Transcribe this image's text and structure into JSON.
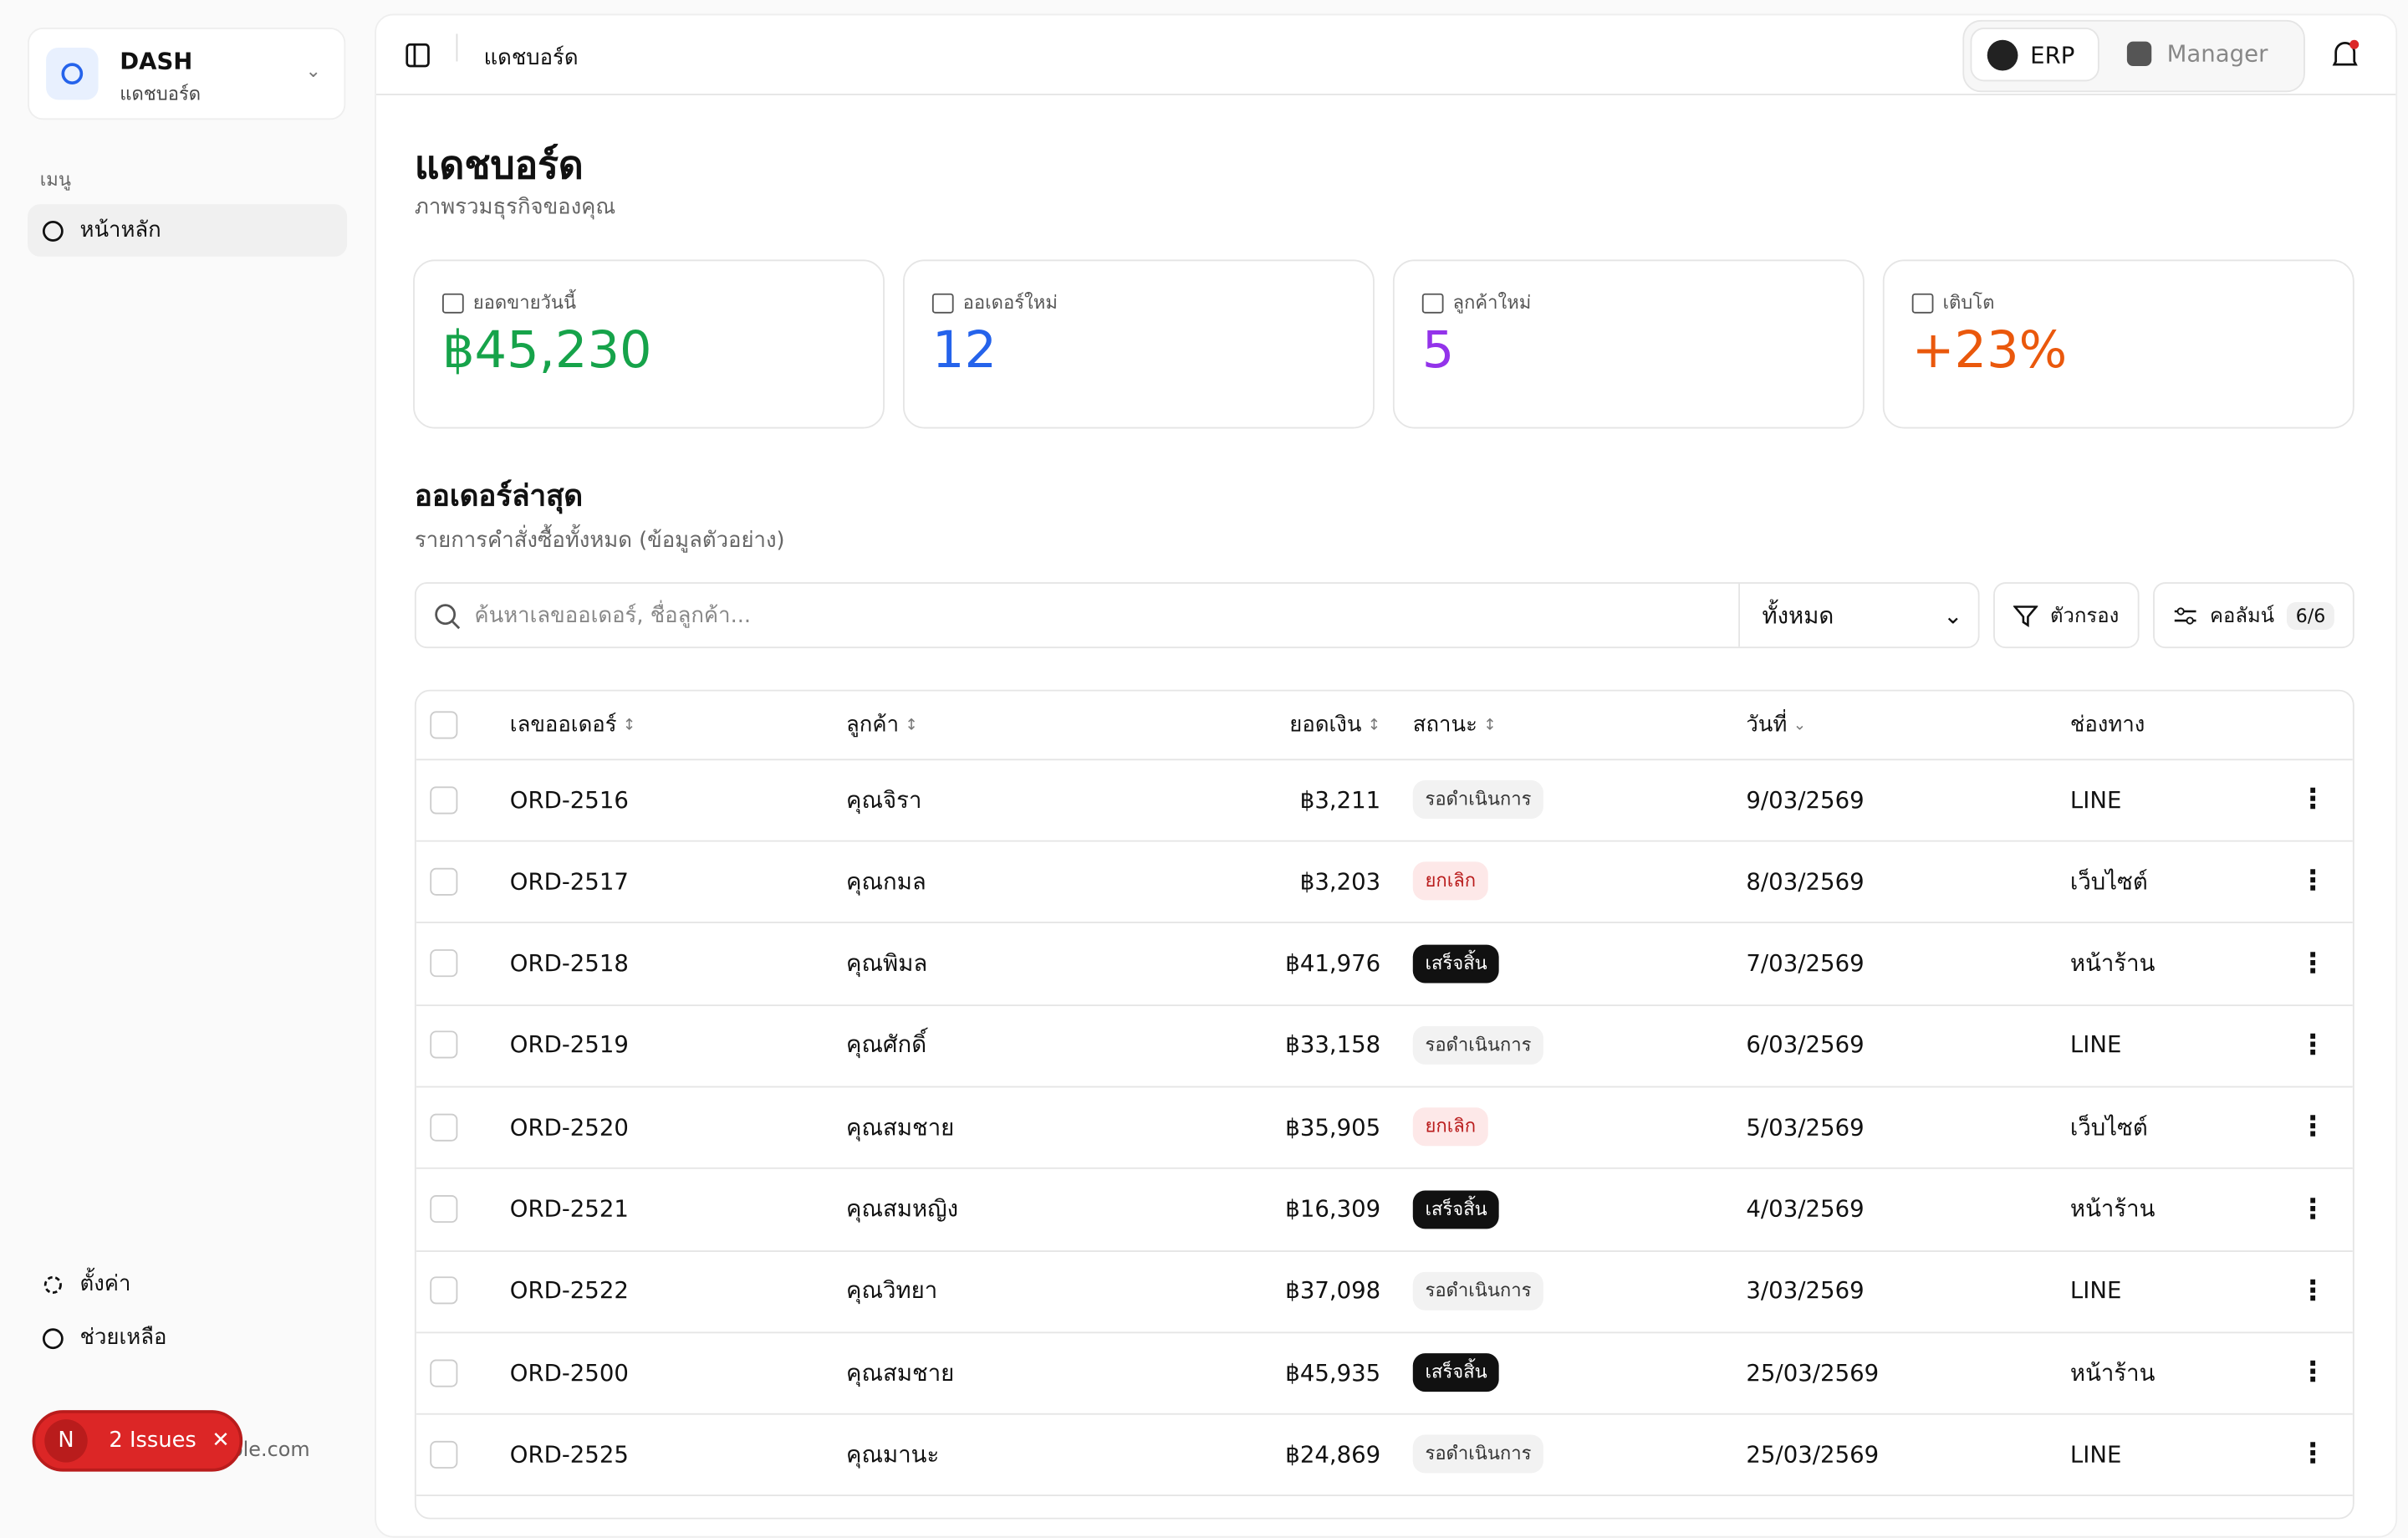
{
  "sidebar": {
    "brand": "DASH",
    "brand_sub": "แดชบอร์ด",
    "menu_label": "เมนู",
    "menu": [
      "หน้าหลัก"
    ],
    "footer": [
      "ตั้งค่า",
      "ช่วยเหลือ"
    ],
    "email": "ple.com"
  },
  "issues": {
    "icon": "N",
    "label": "2 Issues"
  },
  "header": {
    "breadcrumb": "แดชบอร์ด",
    "tabs": [
      "ERP",
      "Manager"
    ]
  },
  "page": {
    "title": "แดชบอร์ด",
    "subtitle": "ภาพรวมธุรกิจของคุณ"
  },
  "stats": [
    {
      "label": "ยอดขายวันนี้",
      "value": "฿45,230",
      "color": "#16a34a"
    },
    {
      "label": "ออเดอร์ใหม่",
      "value": "12",
      "color": "#2563eb"
    },
    {
      "label": "ลูกค้าใหม่",
      "value": "5",
      "color": "#9333ea"
    },
    {
      "label": "เติบโต",
      "value": "+23%",
      "color": "#ea580c"
    }
  ],
  "orders": {
    "title": "ออเดอร์ล่าสุด",
    "subtitle": "รายการคำสั่งซื้อทั้งหมด (ข้อมูลตัวอย่าง)",
    "search_placeholder": "ค้นหาเลขออเดอร์, ชื่อลูกค้า...",
    "filter_select": "ทั้งหมด",
    "filter_button": "ตัวกรอง",
    "columns_button": "คอลัมน์",
    "columns_count": "6/6",
    "headers": [
      "เลขออเดอร์",
      "ลูกค้า",
      "ยอดเงิน",
      "สถานะ",
      "วันที่",
      "ช่องทาง"
    ],
    "rows": [
      [
        "ORD-2516",
        "คุณจิรา",
        "฿3,211",
        "รอดำเนินการ",
        "9/03/2569",
        "LINE"
      ],
      [
        "ORD-2517",
        "คุณกมล",
        "฿3,203",
        "ยกเลิก",
        "8/03/2569",
        "เว็บไซต์"
      ],
      [
        "ORD-2518",
        "คุณพิมล",
        "฿41,976",
        "เสร็จสิ้น",
        "7/03/2569",
        "หน้าร้าน"
      ],
      [
        "ORD-2519",
        "คุณศักดิ์",
        "฿33,158",
        "รอดำเนินการ",
        "6/03/2569",
        "LINE"
      ],
      [
        "ORD-2520",
        "คุณสมชาย",
        "฿35,905",
        "ยกเลิก",
        "5/03/2569",
        "เว็บไซต์"
      ],
      [
        "ORD-2521",
        "คุณสมหญิง",
        "฿16,309",
        "เสร็จสิ้น",
        "4/03/2569",
        "หน้าร้าน"
      ],
      [
        "ORD-2522",
        "คุณวิทยา",
        "฿37,098",
        "รอดำเนินการ",
        "3/03/2569",
        "LINE"
      ],
      [
        "ORD-2500",
        "คุณสมชาย",
        "฿45,935",
        "เสร็จสิ้น",
        "25/03/2569",
        "หน้าร้าน"
      ],
      [
        "ORD-2525",
        "คุณมานะ",
        "฿24,869",
        "รอดำเนินการ",
        "25/03/2569",
        "LINE"
      ]
    ]
  }
}
